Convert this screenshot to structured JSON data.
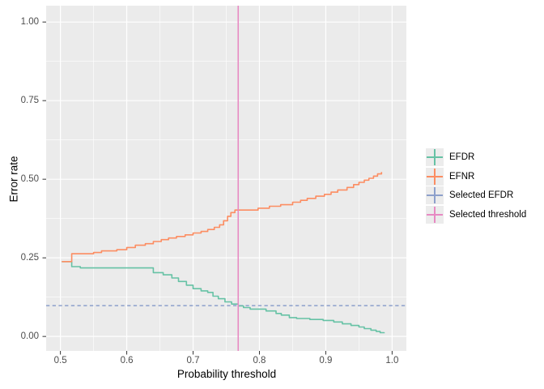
{
  "chart_data": {
    "type": "line",
    "title": "",
    "xlabel": "Probability threshold",
    "ylabel": "Error rate",
    "xlim": [
      0.4785,
      1.0215
    ],
    "ylim": [
      -0.046,
      1.052
    ],
    "x_ticks": [
      0.5,
      0.6,
      0.7,
      0.8,
      0.9,
      1.0
    ],
    "x_tick_labels": [
      "0.5",
      "0.6",
      "0.7",
      "0.8",
      "0.9",
      "1.0"
    ],
    "y_ticks": [
      0.0,
      0.25,
      0.5,
      0.75,
      1.0
    ],
    "y_tick_labels": [
      "0.00",
      "0.25",
      "0.50",
      "0.75",
      "1.00"
    ],
    "x_minor_ticks": [
      0.55,
      0.65,
      0.75,
      0.85,
      0.95
    ],
    "y_minor_ticks": [
      0.125,
      0.375,
      0.625,
      0.875
    ],
    "grid": true,
    "panel_bg": "#ebebeb",
    "grid_color": "#ffffff",
    "axis_text_color": "#4d4d4d",
    "tick_mark_color": "#333333",
    "legend_position": "right",
    "series": [
      {
        "name": "EFDR",
        "color": "#66C2A5",
        "style": "step",
        "points": [
          [
            0.502,
            0.238
          ],
          [
            0.517,
            0.222
          ],
          [
            0.53,
            0.218
          ],
          [
            0.64,
            0.203
          ],
          [
            0.655,
            0.196
          ],
          [
            0.668,
            0.186
          ],
          [
            0.678,
            0.175
          ],
          [
            0.69,
            0.163
          ],
          [
            0.7,
            0.152
          ],
          [
            0.712,
            0.145
          ],
          [
            0.722,
            0.14
          ],
          [
            0.73,
            0.128
          ],
          [
            0.738,
            0.12
          ],
          [
            0.748,
            0.11
          ],
          [
            0.758,
            0.103
          ],
          [
            0.768,
            0.097
          ],
          [
            0.776,
            0.092
          ],
          [
            0.786,
            0.087
          ],
          [
            0.81,
            0.081
          ],
          [
            0.825,
            0.073
          ],
          [
            0.833,
            0.068
          ],
          [
            0.845,
            0.06
          ],
          [
            0.856,
            0.057
          ],
          [
            0.876,
            0.054
          ],
          [
            0.896,
            0.051
          ],
          [
            0.912,
            0.046
          ],
          [
            0.925,
            0.04
          ],
          [
            0.938,
            0.035
          ],
          [
            0.95,
            0.03
          ],
          [
            0.958,
            0.025
          ],
          [
            0.968,
            0.02
          ],
          [
            0.976,
            0.016
          ],
          [
            0.982,
            0.012
          ],
          [
            0.988,
            0.01
          ]
        ]
      },
      {
        "name": "EFNR",
        "color": "#FC8D62",
        "style": "step",
        "points": [
          [
            0.502,
            0.238
          ],
          [
            0.517,
            0.263
          ],
          [
            0.55,
            0.267
          ],
          [
            0.562,
            0.272
          ],
          [
            0.585,
            0.276
          ],
          [
            0.6,
            0.283
          ],
          [
            0.613,
            0.29
          ],
          [
            0.628,
            0.295
          ],
          [
            0.64,
            0.302
          ],
          [
            0.652,
            0.308
          ],
          [
            0.663,
            0.313
          ],
          [
            0.675,
            0.318
          ],
          [
            0.688,
            0.323
          ],
          [
            0.7,
            0.329
          ],
          [
            0.712,
            0.334
          ],
          [
            0.722,
            0.34
          ],
          [
            0.732,
            0.347
          ],
          [
            0.74,
            0.355
          ],
          [
            0.746,
            0.368
          ],
          [
            0.752,
            0.382
          ],
          [
            0.757,
            0.394
          ],
          [
            0.763,
            0.402
          ],
          [
            0.798,
            0.408
          ],
          [
            0.815,
            0.414
          ],
          [
            0.832,
            0.419
          ],
          [
            0.85,
            0.427
          ],
          [
            0.862,
            0.433
          ],
          [
            0.872,
            0.439
          ],
          [
            0.885,
            0.446
          ],
          [
            0.898,
            0.452
          ],
          [
            0.908,
            0.459
          ],
          [
            0.918,
            0.466
          ],
          [
            0.932,
            0.474
          ],
          [
            0.942,
            0.483
          ],
          [
            0.95,
            0.49
          ],
          [
            0.958,
            0.497
          ],
          [
            0.965,
            0.503
          ],
          [
            0.972,
            0.51
          ],
          [
            0.978,
            0.517
          ],
          [
            0.984,
            0.523
          ]
        ]
      },
      {
        "name": "Selected EFDR",
        "color": "#8DA0CB",
        "style": "hline-dashed",
        "y": 0.098
      },
      {
        "name": "Selected threshold",
        "color": "#E78AC3",
        "style": "vline",
        "x": 0.768
      }
    ]
  }
}
